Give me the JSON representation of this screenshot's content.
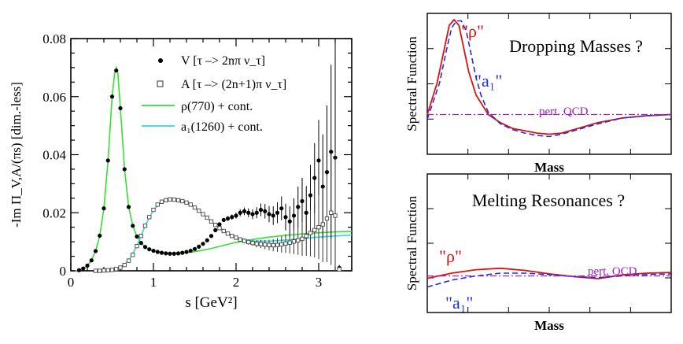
{
  "colors": {
    "rho_fit": "#33e033",
    "a1_fit": "#30d8e0",
    "v_data": "#000000",
    "a_data": "#444444",
    "schematic_rho": "#e01010",
    "schematic_a1": "#2030e0",
    "pert_qcd": "#a020c0"
  },
  "chart_data": [
    {
      "type": "scatter",
      "ylabel": "-Im Π_V,A/(πs) [dim.-less]",
      "xlabel": "s [GeV²]",
      "xlim": [
        0,
        3.4
      ],
      "ylim": [
        0,
        0.08
      ],
      "xticks": [
        "0",
        "1",
        "2",
        "3"
      ],
      "yticks": [
        "0",
        "0.02",
        "0.04",
        "0.06",
        "0.08"
      ],
      "legend": [
        {
          "marker": "filled-circle",
          "label": "V [τ –> 2nπ ν_τ]"
        },
        {
          "marker": "open-square",
          "label": "A [τ –> (2n+1)π ν_τ]"
        },
        {
          "marker": "line-green",
          "label": "ρ(770)   + cont."
        },
        {
          "marker": "line-cyan",
          "label": "a₁(1260) + cont."
        }
      ],
      "series": [
        {
          "name": "V [τ –> 2nπ ν_τ]",
          "x": [
            0.1,
            0.15,
            0.2,
            0.25,
            0.3,
            0.35,
            0.4,
            0.45,
            0.5,
            0.55,
            0.6,
            0.65,
            0.7,
            0.75,
            0.8,
            0.85,
            0.9,
            0.95,
            1.0,
            1.05,
            1.1,
            1.15,
            1.2,
            1.25,
            1.3,
            1.35,
            1.4,
            1.45,
            1.5,
            1.55,
            1.6,
            1.65,
            1.7,
            1.75,
            1.8,
            1.85,
            1.9,
            1.95,
            2.0,
            2.05,
            2.1,
            2.15,
            2.2,
            2.25,
            2.3,
            2.35,
            2.4,
            2.45,
            2.5,
            2.55,
            2.6,
            2.65,
            2.7,
            2.75,
            2.8,
            2.85,
            2.9,
            2.95,
            3.0,
            3.05,
            3.1,
            3.15,
            3.2,
            3.25
          ],
          "y": [
            0.0002,
            0.0008,
            0.0018,
            0.0036,
            0.0068,
            0.0121,
            0.0215,
            0.038,
            0.06,
            0.069,
            0.056,
            0.035,
            0.022,
            0.0155,
            0.0118,
            0.0096,
            0.0082,
            0.0074,
            0.0069,
            0.0065,
            0.0062,
            0.006,
            0.0059,
            0.0059,
            0.006,
            0.0062,
            0.0065,
            0.0069,
            0.0075,
            0.0083,
            0.0093,
            0.0105,
            0.012,
            0.014,
            0.016,
            0.0175,
            0.018,
            0.0185,
            0.019,
            0.02,
            0.0205,
            0.02,
            0.0195,
            0.02,
            0.021,
            0.0205,
            0.0195,
            0.019,
            0.02,
            0.0215,
            0.0185,
            0.017,
            0.019,
            0.022,
            0.024,
            0.02,
            0.026,
            0.032,
            0.038,
            0.029,
            0.034,
            0.041,
            0.039,
            0.001
          ],
          "yerr": [
            0.0002,
            0.0002,
            0.0002,
            0.0002,
            0.0002,
            0.0003,
            0.0004,
            0.0005,
            0.0006,
            0.0006,
            0.0005,
            0.0004,
            0.0003,
            0.0003,
            0.0002,
            0.0002,
            0.0002,
            0.0002,
            0.0002,
            0.0002,
            0.0002,
            0.0002,
            0.0002,
            0.0002,
            0.0002,
            0.0002,
            0.0002,
            0.0003,
            0.0003,
            0.0003,
            0.0003,
            0.0004,
            0.0004,
            0.0005,
            0.0006,
            0.0007,
            0.0008,
            0.0009,
            0.001,
            0.0012,
            0.0013,
            0.0015,
            0.0017,
            0.0019,
            0.0022,
            0.0025,
            0.0028,
            0.0032,
            0.0036,
            0.0041,
            0.0046,
            0.0052,
            0.006,
            0.007,
            0.008,
            0.0092,
            0.0105,
            0.012,
            0.014,
            0.018,
            0.023,
            0.03,
            0.04,
            0.001
          ]
        },
        {
          "name": "A [τ –> (2n+1)π ν_τ]",
          "x": [
            0.3,
            0.35,
            0.4,
            0.45,
            0.5,
            0.55,
            0.6,
            0.65,
            0.7,
            0.75,
            0.8,
            0.85,
            0.9,
            0.95,
            1.0,
            1.05,
            1.1,
            1.15,
            1.2,
            1.25,
            1.3,
            1.35,
            1.4,
            1.45,
            1.5,
            1.55,
            1.6,
            1.65,
            1.7,
            1.75,
            1.8,
            1.85,
            1.9,
            1.95,
            2.0,
            2.05,
            2.1,
            2.15,
            2.2,
            2.25,
            2.3,
            2.35,
            2.4,
            2.45,
            2.5,
            2.55,
            2.6,
            2.65,
            2.7,
            2.75,
            2.8,
            2.85,
            2.9,
            2.95,
            3.0,
            3.05,
            3.1,
            3.15,
            3.2,
            3.25
          ],
          "y": [
            0.0,
            0.0,
            0.0001,
            0.0002,
            0.0003,
            0.0006,
            0.0011,
            0.002,
            0.0035,
            0.0055,
            0.0085,
            0.012,
            0.0155,
            0.0185,
            0.021,
            0.0228,
            0.0238,
            0.0243,
            0.0246,
            0.0245,
            0.0243,
            0.024,
            0.0235,
            0.0228,
            0.0218,
            0.0207,
            0.0195,
            0.0183,
            0.017,
            0.0158,
            0.0147,
            0.0137,
            0.0128,
            0.012,
            0.0114,
            0.0108,
            0.0103,
            0.0099,
            0.0096,
            0.0093,
            0.0092,
            0.009,
            0.0089,
            0.0088,
            0.0089,
            0.0091,
            0.0094,
            0.0097,
            0.0101,
            0.0105,
            0.011,
            0.012,
            0.013,
            0.014,
            0.015,
            0.016,
            0.018,
            0.02,
            0.019,
            0.0005
          ],
          "yerr": [
            0.0001,
            0.0001,
            0.0001,
            0.0001,
            0.0001,
            0.0001,
            0.0001,
            0.0002,
            0.0002,
            0.0002,
            0.0003,
            0.0003,
            0.0003,
            0.0003,
            0.0003,
            0.0003,
            0.0003,
            0.0003,
            0.0003,
            0.0003,
            0.0003,
            0.0003,
            0.0003,
            0.0003,
            0.0003,
            0.0003,
            0.0003,
            0.0003,
            0.0004,
            0.0004,
            0.0004,
            0.0005,
            0.0005,
            0.0006,
            0.0006,
            0.0007,
            0.0008,
            0.0009,
            0.001,
            0.0012,
            0.0014,
            0.0016,
            0.0018,
            0.0021,
            0.0024,
            0.0028,
            0.0032,
            0.0037,
            0.0043,
            0.005,
            0.0058,
            0.0068,
            0.008,
            0.0094,
            0.011,
            0.013,
            0.015,
            0.018,
            0.022,
            0.001
          ]
        },
        {
          "name": "ρ(770)   + cont.",
          "x": [
            0.05,
            0.1,
            0.15,
            0.2,
            0.25,
            0.3,
            0.35,
            0.4,
            0.45,
            0.5,
            0.53,
            0.55,
            0.57,
            0.6,
            0.65,
            0.7,
            0.75,
            0.8,
            0.85,
            0.9,
            0.95,
            1.0,
            1.1,
            1.2,
            1.3,
            1.4,
            1.5,
            1.6,
            1.7,
            1.8,
            1.9,
            2.0,
            2.2,
            2.4,
            2.6,
            2.8,
            3.0,
            3.2,
            3.4
          ],
          "y": [
            0.0,
            0.0002,
            0.0008,
            0.0018,
            0.0036,
            0.0068,
            0.0121,
            0.0215,
            0.038,
            0.06,
            0.068,
            0.07,
            0.068,
            0.056,
            0.035,
            0.022,
            0.0155,
            0.0118,
            0.0096,
            0.0082,
            0.0074,
            0.0068,
            0.0062,
            0.006,
            0.006,
            0.0062,
            0.0066,
            0.0071,
            0.0077,
            0.0084,
            0.0091,
            0.0098,
            0.0108,
            0.0116,
            0.0122,
            0.0127,
            0.0131,
            0.0134,
            0.0136
          ]
        },
        {
          "name": "a₁(1260) + cont.",
          "x": [
            0.3,
            0.4,
            0.5,
            0.6,
            0.7,
            0.8,
            0.9,
            1.0,
            1.1,
            1.2,
            1.3,
            1.4,
            1.5,
            1.6,
            1.7,
            1.8,
            1.9,
            2.0,
            2.2,
            2.4,
            2.6,
            2.8,
            3.0,
            3.2,
            3.4
          ],
          "y": [
            0.0,
            0.0001,
            0.0003,
            0.0011,
            0.0035,
            0.0085,
            0.0155,
            0.021,
            0.0238,
            0.0246,
            0.0243,
            0.0235,
            0.0218,
            0.0195,
            0.017,
            0.0147,
            0.0128,
            0.0114,
            0.0103,
            0.0102,
            0.0106,
            0.0111,
            0.0116,
            0.012,
            0.0123
          ]
        }
      ]
    },
    {
      "type": "line",
      "ylabel": "Spectral  Function",
      "xlabel": "Mass",
      "title": "Dropping Masses ?",
      "labels": {
        "rho": "\"ρ\"",
        "a1": "\"a₁\"",
        "pqcd": "pert. QCD"
      },
      "series": [
        {
          "name": "\"ρ\"",
          "style": "solid-red",
          "x": [
            0.0,
            0.04,
            0.07,
            0.09,
            0.11,
            0.13,
            0.15,
            0.17,
            0.2,
            0.25,
            0.3,
            0.35,
            0.4,
            0.45,
            0.5,
            0.55,
            0.6,
            0.7,
            0.8,
            0.9,
            1.0
          ],
          "y": [
            0.18,
            0.45,
            0.75,
            0.95,
            1.0,
            0.95,
            0.75,
            0.55,
            0.35,
            0.18,
            0.11,
            0.06,
            0.04,
            0.02,
            0.01,
            0.02,
            0.05,
            0.11,
            0.15,
            0.17,
            0.18
          ]
        },
        {
          "name": "\"a₁\"",
          "style": "dashed-blue",
          "x": [
            0.0,
            0.05,
            0.08,
            0.1,
            0.12,
            0.14,
            0.16,
            0.18,
            0.2,
            0.22,
            0.25,
            0.3,
            0.35,
            0.4,
            0.45,
            0.5,
            0.55,
            0.6,
            0.7,
            0.8,
            0.9,
            1.0
          ],
          "y": [
            0.14,
            0.45,
            0.75,
            0.93,
            0.99,
            0.99,
            0.9,
            0.7,
            0.5,
            0.35,
            0.2,
            0.1,
            0.05,
            0.02,
            0.0,
            -0.01,
            0.01,
            0.04,
            0.1,
            0.15,
            0.17,
            0.18
          ]
        },
        {
          "name": "pert. QCD",
          "style": "dashdot-purple",
          "x": [
            0.0,
            1.0
          ],
          "y": [
            0.18,
            0.18
          ]
        }
      ]
    },
    {
      "type": "line",
      "ylabel": "Spectral  Function",
      "xlabel": "Mass",
      "title": "Melting Resonances ?",
      "labels": {
        "rho": "\"ρ\"",
        "a1": "\"a₁\"",
        "pqcd": "pert. QCD"
      },
      "series": [
        {
          "name": "\"ρ\"",
          "style": "solid-red",
          "x": [
            0.0,
            0.1,
            0.2,
            0.3,
            0.4,
            0.5,
            0.6,
            0.7,
            0.8,
            0.9,
            1.0
          ],
          "y": [
            0.35,
            0.5,
            0.6,
            0.64,
            0.58,
            0.48,
            0.4,
            0.34,
            0.45,
            0.5,
            0.52
          ]
        },
        {
          "name": "\"a₁\"",
          "style": "dashed-blue",
          "x": [
            0.0,
            0.1,
            0.2,
            0.3,
            0.4,
            0.5,
            0.6,
            0.7,
            0.8,
            0.9,
            1.0
          ],
          "y": [
            0.1,
            0.3,
            0.42,
            0.5,
            0.5,
            0.46,
            0.4,
            0.37,
            0.42,
            0.46,
            0.48
          ]
        },
        {
          "name": "pert. QCD",
          "style": "dashdot-purple",
          "x": [
            0.0,
            1.0
          ],
          "y": [
            0.42,
            0.42
          ]
        }
      ]
    }
  ]
}
